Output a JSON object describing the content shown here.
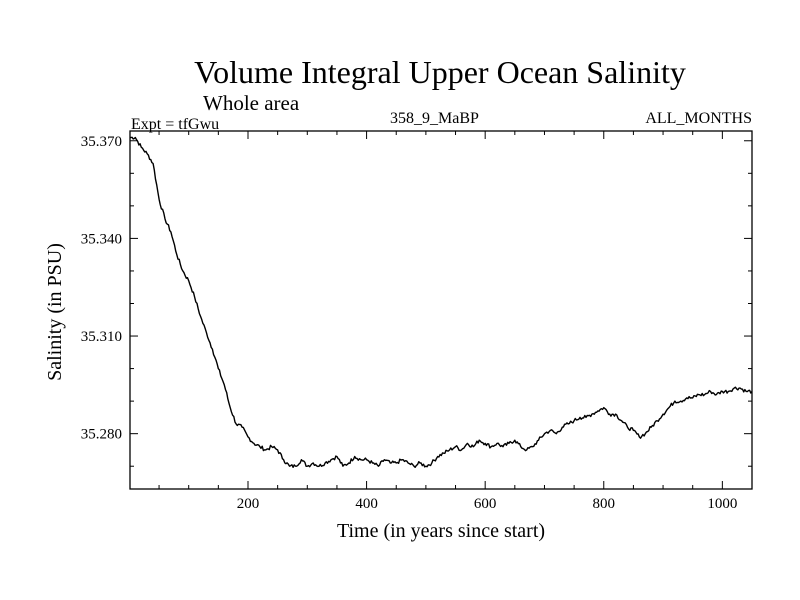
{
  "chart_data": {
    "type": "line",
    "title": "Volume Integral Upper Ocean Salinity",
    "subtitle": "Whole area",
    "expt_label": "Expt = tfGwu",
    "run_label": "358_9_MaBP",
    "months_label": "ALL_MONTHS",
    "xlabel": "Time (in years since start)",
    "ylabel": "Salinity (in PSU)",
    "xlim": [
      1,
      1050
    ],
    "ylim": [
      35.263,
      35.373
    ],
    "x_ticks": [
      200,
      400,
      600,
      800,
      1000
    ],
    "x_tick_labels": [
      "200",
      "400",
      "600",
      "800",
      "1000"
    ],
    "y_ticks": [
      35.28,
      35.31,
      35.34,
      35.37
    ],
    "y_tick_labels": [
      "35.280",
      "35.310",
      "35.340",
      "35.370"
    ],
    "line_color": "#000000",
    "series": [
      {
        "name": "salinity",
        "x": [
          1,
          10,
          20,
          30,
          40,
          50,
          60,
          70,
          80,
          90,
          100,
          110,
          120,
          130,
          140,
          150,
          160,
          170,
          180,
          190,
          200,
          210,
          220,
          230,
          240,
          250,
          260,
          270,
          280,
          290,
          300,
          310,
          320,
          330,
          340,
          350,
          360,
          370,
          380,
          390,
          400,
          410,
          420,
          430,
          440,
          450,
          460,
          470,
          480,
          490,
          500,
          510,
          520,
          530,
          540,
          550,
          560,
          570,
          580,
          590,
          600,
          610,
          620,
          630,
          640,
          650,
          660,
          670,
          680,
          690,
          700,
          710,
          720,
          730,
          740,
          750,
          760,
          770,
          780,
          790,
          800,
          810,
          820,
          830,
          840,
          850,
          860,
          870,
          880,
          890,
          900,
          910,
          920,
          930,
          940,
          950,
          960,
          970,
          980,
          990,
          1000,
          1010,
          1020,
          1030,
          1040,
          1050
        ],
        "values": [
          35.371,
          35.371,
          35.368,
          35.366,
          35.363,
          35.352,
          35.346,
          35.342,
          35.335,
          35.33,
          35.327,
          35.322,
          35.316,
          35.311,
          35.306,
          35.3,
          35.295,
          35.288,
          35.283,
          35.282,
          35.279,
          35.277,
          35.276,
          35.275,
          35.276,
          35.275,
          35.272,
          35.27,
          35.27,
          35.272,
          35.27,
          35.271,
          35.27,
          35.271,
          35.272,
          35.273,
          35.27,
          35.271,
          35.273,
          35.272,
          35.272,
          35.271,
          35.27,
          35.272,
          35.271,
          35.271,
          35.272,
          35.271,
          35.27,
          35.271,
          35.27,
          35.271,
          35.273,
          35.274,
          35.275,
          35.276,
          35.275,
          35.277,
          35.276,
          35.278,
          35.277,
          35.276,
          35.277,
          35.276,
          35.277,
          35.278,
          35.276,
          35.275,
          35.276,
          35.278,
          35.28,
          35.281,
          35.28,
          35.282,
          35.283,
          35.284,
          35.285,
          35.285,
          35.286,
          35.287,
          35.288,
          35.286,
          35.286,
          35.284,
          35.282,
          35.281,
          35.279,
          35.28,
          35.282,
          35.284,
          35.286,
          35.288,
          35.29,
          35.29,
          35.291,
          35.291,
          35.292,
          35.292,
          35.293,
          35.292,
          35.293,
          35.293,
          35.294,
          35.294,
          35.293,
          35.293
        ]
      }
    ]
  }
}
